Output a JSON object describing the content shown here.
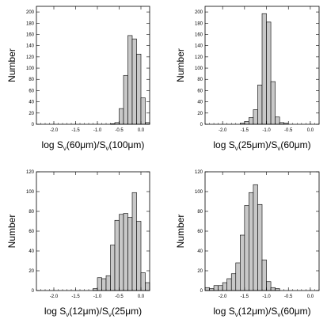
{
  "chart_data": [
    {
      "type": "bar",
      "ylabel": "Number",
      "xlabel": {
        "prefix": "log S",
        "sub1": "ν",
        "mid": "(60μm)/S",
        "sub2": "ν",
        "suffix": "(100μm)"
      },
      "xlim": [
        -2.4,
        0.2
      ],
      "ylim": [
        0,
        210
      ],
      "xticks": [
        -2.0,
        -1.5,
        -1.0,
        -0.5,
        0.0
      ],
      "xtick_labels": [
        "-2.0",
        "-1.5",
        "-1.0",
        "-0.5",
        "0.0"
      ],
      "yticks": [
        0,
        20,
        40,
        60,
        80,
        100,
        120,
        140,
        160,
        180,
        200
      ],
      "ytick_labels": [
        "0",
        "20",
        "40",
        "60",
        "80",
        "100",
        "120",
        "140",
        "160",
        "180",
        "200"
      ],
      "bin_width": 0.1,
      "bin_centers": [
        -0.65,
        -0.55,
        -0.45,
        -0.35,
        -0.25,
        -0.15,
        -0.05,
        0.05,
        0.15
      ],
      "values": [
        1,
        3,
        28,
        87,
        158,
        152,
        125,
        47,
        3
      ]
    },
    {
      "type": "bar",
      "ylabel": "Number",
      "xlabel": {
        "prefix": "log S",
        "sub1": "ν",
        "mid": "(25μm)/S",
        "sub2": "ν",
        "suffix": "(60μm)"
      },
      "xlim": [
        -2.4,
        0.2
      ],
      "ylim": [
        0,
        210
      ],
      "xticks": [
        -2.0,
        -1.5,
        -1.0,
        -0.5,
        0.0
      ],
      "xtick_labels": [
        "-2.0",
        "-1.5",
        "-1.0",
        "-0.5",
        "0.0"
      ],
      "yticks": [
        0,
        20,
        40,
        60,
        80,
        100,
        120,
        140,
        160,
        180,
        200
      ],
      "ytick_labels": [
        "0",
        "20",
        "40",
        "60",
        "80",
        "100",
        "120",
        "140",
        "160",
        "180",
        "200"
      ],
      "bin_width": 0.1,
      "bin_centers": [
        -1.55,
        -1.45,
        -1.35,
        -1.25,
        -1.15,
        -1.05,
        -0.95,
        -0.85,
        -0.75,
        -0.65,
        -0.55
      ],
      "values": [
        2,
        5,
        12,
        26,
        70,
        197,
        182,
        76,
        13,
        3,
        2
      ]
    },
    {
      "type": "bar",
      "ylabel": "Number",
      "xlabel": {
        "prefix": "log S",
        "sub1": "ν",
        "mid": "(12μm)/S",
        "sub2": "ν",
        "suffix": "(25μm)"
      },
      "xlim": [
        -2.4,
        0.2
      ],
      "ylim": [
        0,
        120
      ],
      "xticks": [
        -2.0,
        -1.5,
        -1.0,
        -0.5,
        0.0
      ],
      "xtick_labels": [
        "-2.0",
        "-1.5",
        "-1.0",
        "-0.5",
        "0.0"
      ],
      "yticks": [
        0,
        20,
        40,
        60,
        80,
        100,
        120
      ],
      "ytick_labels": [
        "0",
        "20",
        "40",
        "60",
        "80",
        "100",
        "120"
      ],
      "bin_width": 0.1,
      "bin_centers": [
        -1.05,
        -0.95,
        -0.85,
        -0.75,
        -0.65,
        -0.55,
        -0.45,
        -0.35,
        -0.25,
        -0.15,
        -0.05,
        0.05,
        0.15
      ],
      "values": [
        2,
        13,
        12,
        15,
        46,
        71,
        77,
        78,
        74,
        99,
        70,
        18,
        8
      ]
    },
    {
      "type": "bar",
      "ylabel": "Number",
      "xlabel": {
        "prefix": "log S",
        "sub1": "ν",
        "mid": "(12μm)/S",
        "sub2": "ν",
        "suffix": "(60μm)"
      },
      "xlim": [
        -2.4,
        0.2
      ],
      "ylim": [
        0,
        120
      ],
      "xticks": [
        -2.0,
        -1.5,
        -1.0,
        -0.5,
        0.0
      ],
      "xtick_labels": [
        "-2.0",
        "-1.5",
        "-1.0",
        "-0.5",
        "0.0"
      ],
      "yticks": [
        0,
        20,
        40,
        60,
        80,
        100,
        120
      ],
      "ytick_labels": [
        "0",
        "20",
        "40",
        "60",
        "80",
        "100",
        "120"
      ],
      "bin_width": 0.1,
      "bin_centers": [
        -2.35,
        -2.25,
        -2.15,
        -2.05,
        -1.95,
        -1.85,
        -1.75,
        -1.65,
        -1.55,
        -1.45,
        -1.35,
        -1.25,
        -1.15,
        -1.05,
        -0.95,
        -0.85,
        -0.75
      ],
      "values": [
        3,
        2,
        5,
        5,
        8,
        12,
        17,
        28,
        56,
        86,
        99,
        107,
        87,
        31,
        9,
        3,
        2
      ]
    }
  ],
  "colors": {
    "bar_fill": "#c8c8c8",
    "bar_stroke": "#000000",
    "axis": "#000000"
  }
}
